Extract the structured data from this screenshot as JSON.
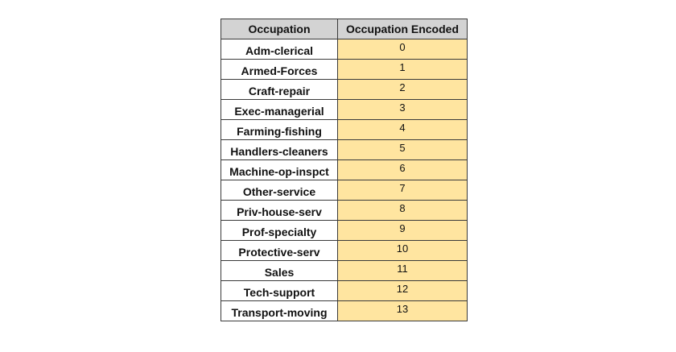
{
  "table": {
    "headers": [
      "Occupation",
      "Occupation Encoded"
    ],
    "rows": [
      {
        "occupation": "Adm-clerical",
        "encoded": "0"
      },
      {
        "occupation": "Armed-Forces",
        "encoded": "1"
      },
      {
        "occupation": "Craft-repair",
        "encoded": "2"
      },
      {
        "occupation": "Exec-managerial",
        "encoded": "3"
      },
      {
        "occupation": "Farming-fishing",
        "encoded": "4"
      },
      {
        "occupation": "Handlers-cleaners",
        "encoded": "5"
      },
      {
        "occupation": "Machine-op-inspct",
        "encoded": "6"
      },
      {
        "occupation": "Other-service",
        "encoded": "7"
      },
      {
        "occupation": "Priv-house-serv",
        "encoded": "8"
      },
      {
        "occupation": "Prof-specialty",
        "encoded": "9"
      },
      {
        "occupation": "Protective-serv",
        "encoded": "10"
      },
      {
        "occupation": "Sales",
        "encoded": "11"
      },
      {
        "occupation": "Tech-support",
        "encoded": "12"
      },
      {
        "occupation": "Transport-moving",
        "encoded": "13"
      }
    ]
  },
  "colors": {
    "header_bg": "#d3d3d3",
    "encoded_cell_bg": "#ffe5a0",
    "border": "#3a3a3a"
  }
}
